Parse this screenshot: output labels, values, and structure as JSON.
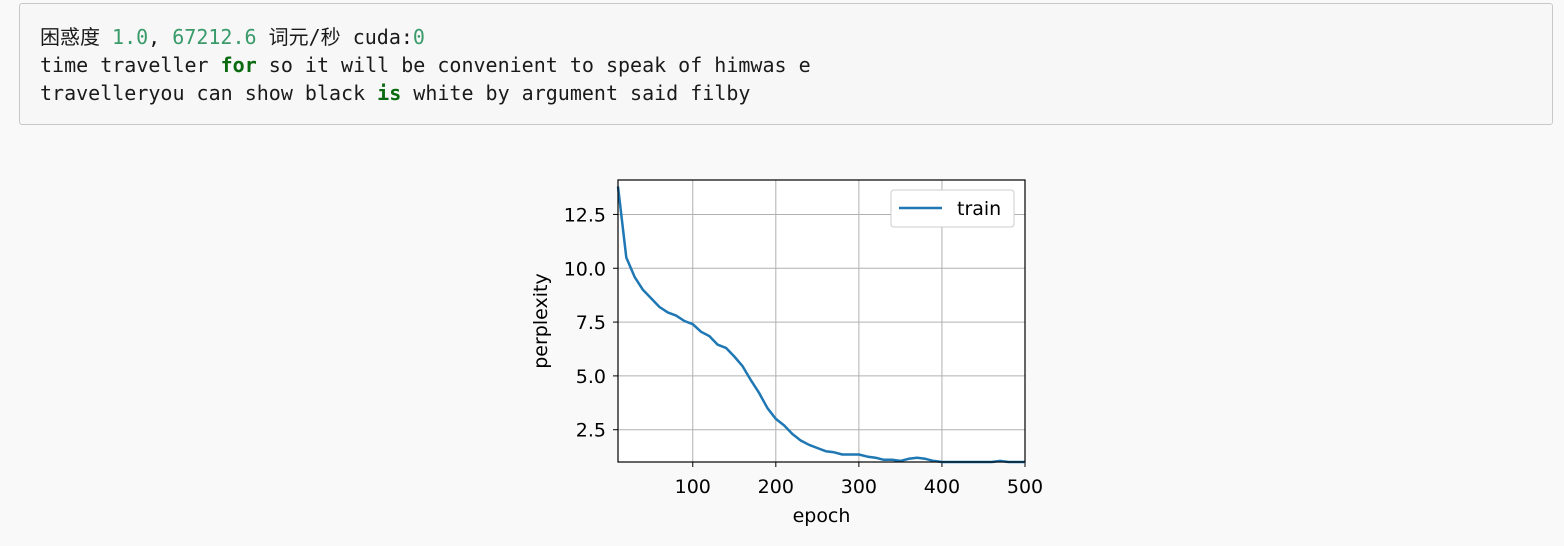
{
  "output": {
    "line1": {
      "label": "困惑度",
      "perplexity": "1.0",
      "sep": ",",
      "speed": "67212.6",
      "unit": "词元/秒",
      "device": "cuda:",
      "device_id": "0"
    },
    "line2": {
      "a": "time traveller ",
      "kw": "for",
      "b": " so it will be convenient to speak of himwas e"
    },
    "line3": {
      "a": "travelleryou can show black ",
      "kw": "is",
      "b": " white by argument said filby"
    }
  },
  "chart_data": {
    "type": "line",
    "xlabel": "epoch",
    "ylabel": "perplexity",
    "xlim": [
      10,
      500
    ],
    "ylim": [
      1.0,
      14.1
    ],
    "xticks": [
      100,
      200,
      300,
      400,
      500
    ],
    "yticks": [
      2.5,
      5.0,
      7.5,
      10.0,
      12.5
    ],
    "ytick_labels": [
      "2.5",
      "5.0",
      "7.5",
      "10.0",
      "12.5"
    ],
    "grid": true,
    "legend_position": "top-right",
    "series": [
      {
        "name": "train",
        "color": "#1f77b4",
        "x": [
          10,
          20,
          30,
          40,
          50,
          60,
          70,
          80,
          90,
          100,
          110,
          120,
          130,
          140,
          150,
          160,
          170,
          180,
          190,
          200,
          210,
          220,
          230,
          240,
          250,
          260,
          270,
          280,
          290,
          300,
          310,
          320,
          330,
          340,
          350,
          360,
          370,
          380,
          390,
          400,
          410,
          420,
          430,
          440,
          450,
          460,
          470,
          480,
          490,
          500
        ],
        "y": [
          13.8,
          10.5,
          9.6,
          9.0,
          8.6,
          8.2,
          7.95,
          7.8,
          7.55,
          7.4,
          7.05,
          6.85,
          6.45,
          6.3,
          5.9,
          5.45,
          4.8,
          4.2,
          3.5,
          3.0,
          2.7,
          2.3,
          2.0,
          1.8,
          1.65,
          1.5,
          1.45,
          1.35,
          1.35,
          1.35,
          1.25,
          1.2,
          1.1,
          1.1,
          1.05,
          1.15,
          1.2,
          1.15,
          1.05,
          1.0,
          1.0,
          1.0,
          1.0,
          1.0,
          1.0,
          1.0,
          1.05,
          1.0,
          1.0,
          1.0
        ]
      }
    ]
  }
}
